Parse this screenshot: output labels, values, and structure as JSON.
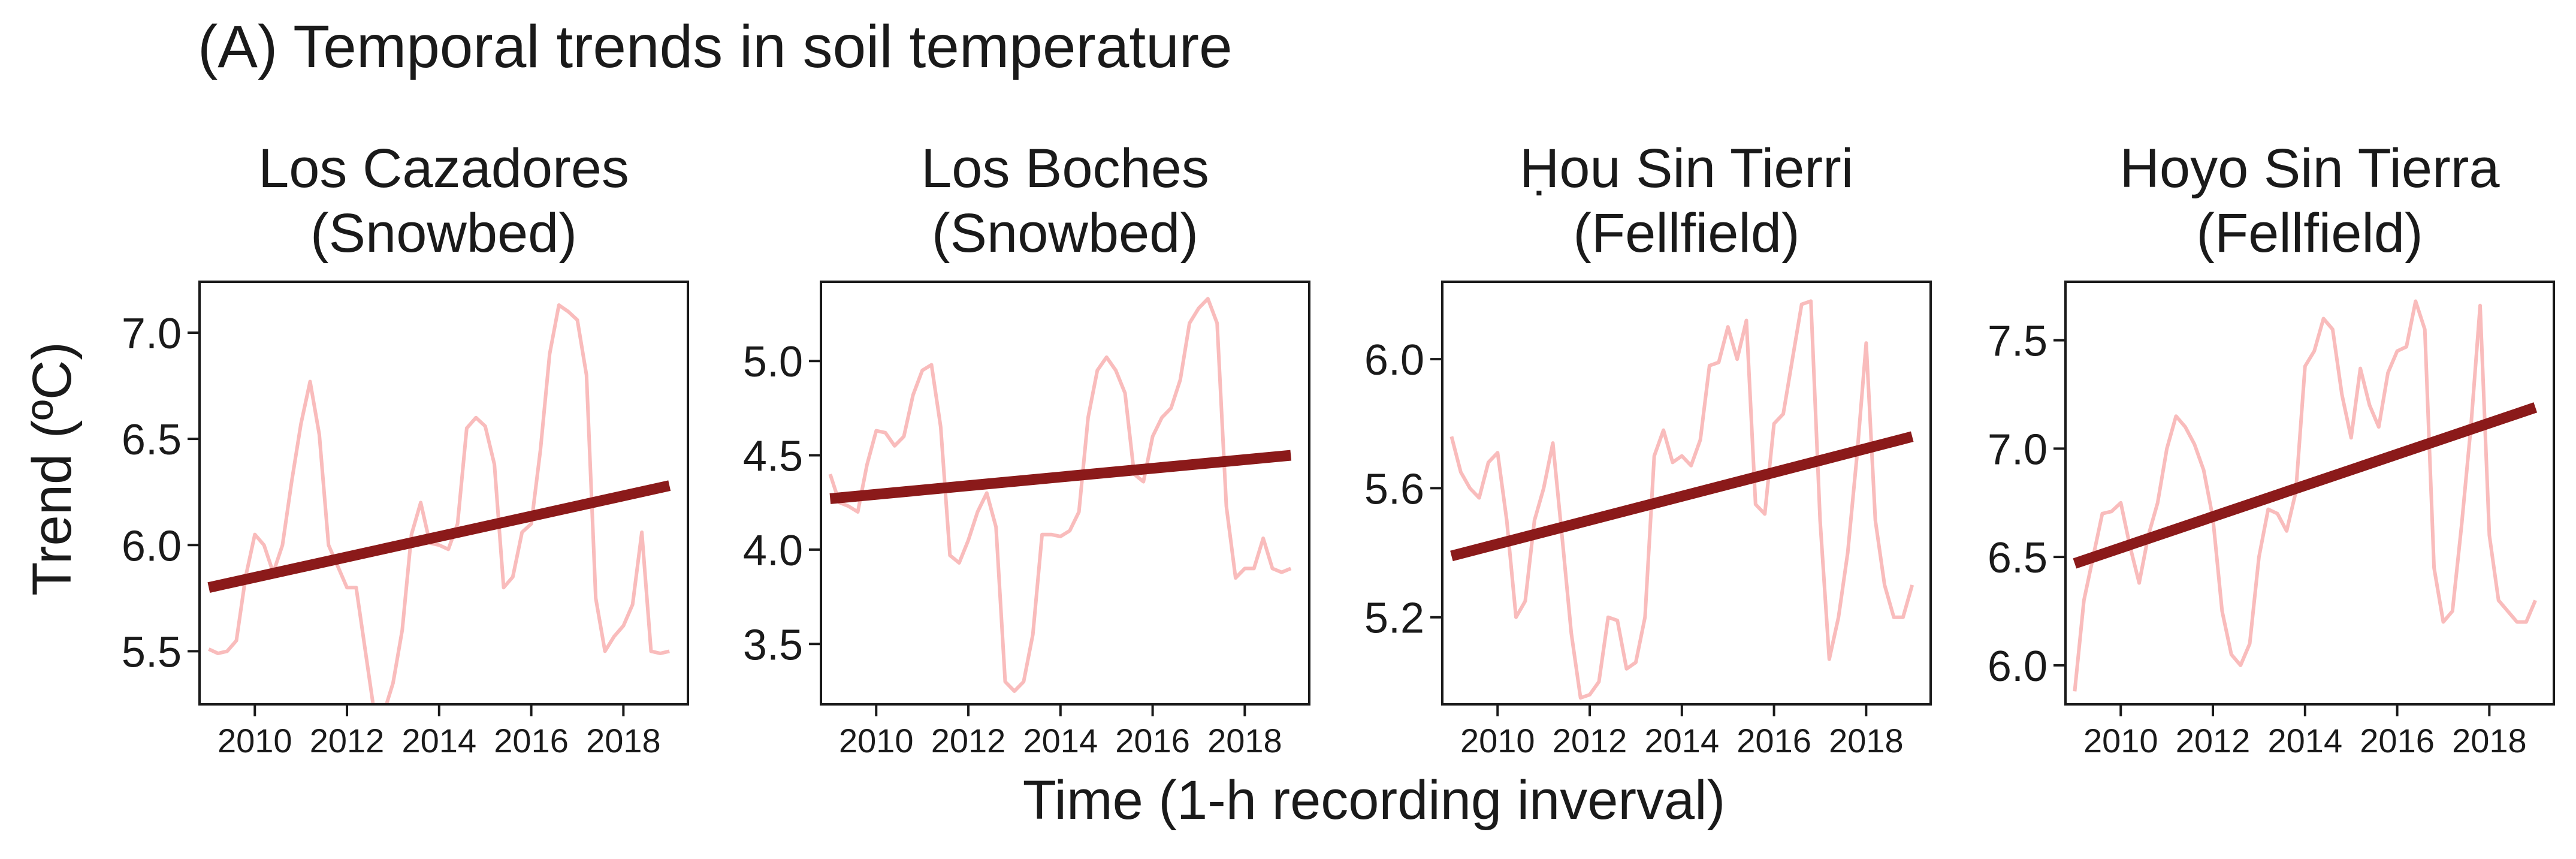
{
  "figure": {
    "title": "(A) Temporal trends in soil temperature",
    "ylabel": "Trend (ºC)",
    "xlabel": "Time (1-h recording inverval)"
  },
  "colors": {
    "raw_series": "#f9bcbc",
    "trend_line": "#8b1a1a",
    "frame": "#1a1a1a",
    "text": "#1a1a1a",
    "background": "#ffffff"
  },
  "chart_data": [
    {
      "type": "line",
      "title_line1": "Los Cazadores",
      "title_line2": "(Snowbed)",
      "xlim": [
        2008.8,
        2019.4
      ],
      "ylim": [
        5.25,
        7.24
      ],
      "x_ticks": [
        2010,
        2012,
        2014,
        2016,
        2018
      ],
      "y_ticks": [
        5.5,
        6.0,
        6.5,
        7.0
      ],
      "y_tick_labels": [
        "5.5",
        "6.0",
        "6.5",
        "7.0"
      ],
      "series": [
        {
          "x": [
            2009.0,
            2009.2,
            2009.4,
            2009.6,
            2009.8,
            2010.0,
            2010.2,
            2010.4,
            2010.6,
            2010.8,
            2011.0,
            2011.2,
            2011.4,
            2011.6,
            2011.8,
            2012.0,
            2012.2,
            2012.4,
            2012.6,
            2012.8,
            2013.0,
            2013.2,
            2013.4,
            2013.6,
            2013.8,
            2014.0,
            2014.2,
            2014.4,
            2014.6,
            2014.8,
            2015.0,
            2015.2,
            2015.4,
            2015.6,
            2015.8,
            2016.0,
            2016.2,
            2016.4,
            2016.6,
            2016.8,
            2017.0,
            2017.2,
            2017.4,
            2017.6,
            2017.8,
            2018.0,
            2018.2,
            2018.4,
            2018.6,
            2018.8,
            2019.0
          ],
          "values": [
            5.51,
            5.49,
            5.5,
            5.55,
            5.85,
            6.05,
            6.0,
            5.87,
            6.0,
            6.3,
            6.57,
            6.77,
            6.52,
            6.0,
            5.9,
            5.8,
            5.8,
            5.5,
            5.2,
            5.21,
            5.35,
            5.6,
            6.05,
            6.2,
            6.01,
            6.0,
            5.98,
            6.1,
            6.55,
            6.6,
            6.56,
            6.38,
            5.8,
            5.85,
            6.06,
            6.1,
            6.45,
            6.9,
            7.13,
            7.1,
            7.06,
            6.8,
            5.75,
            5.5,
            5.57,
            5.62,
            5.72,
            6.06,
            5.5,
            5.49,
            5.5
          ]
        },
        {
          "name": "",
          "x": [
            2009.0,
            2019.0
          ],
          "values": [
            5.8,
            6.28
          ]
        }
      ]
    },
    {
      "type": "line",
      "title_line1": "Los Boches",
      "title_line2": "(Snowbed)",
      "xlim": [
        2008.8,
        2019.4
      ],
      "ylim": [
        3.18,
        5.42
      ],
      "x_ticks": [
        2010,
        2012,
        2014,
        2016,
        2018
      ],
      "y_ticks": [
        3.5,
        4.0,
        4.5,
        5.0
      ],
      "y_tick_labels": [
        "3.5",
        "4.0",
        "4.5",
        "5.0"
      ],
      "series": [
        {
          "x": [
            2009.0,
            2009.2,
            2009.4,
            2009.6,
            2009.8,
            2010.0,
            2010.2,
            2010.4,
            2010.6,
            2010.8,
            2011.0,
            2011.2,
            2011.4,
            2011.6,
            2011.8,
            2012.0,
            2012.2,
            2012.4,
            2012.6,
            2012.8,
            2013.0,
            2013.2,
            2013.4,
            2013.6,
            2013.8,
            2014.0,
            2014.2,
            2014.4,
            2014.6,
            2014.8,
            2015.0,
            2015.2,
            2015.4,
            2015.6,
            2015.8,
            2016.0,
            2016.2,
            2016.4,
            2016.6,
            2016.8,
            2017.0,
            2017.2,
            2017.4,
            2017.6,
            2017.8,
            2018.0,
            2018.2,
            2018.4,
            2018.6,
            2018.8,
            2019.0
          ],
          "values": [
            4.4,
            4.25,
            4.23,
            4.2,
            4.45,
            4.63,
            4.62,
            4.55,
            4.6,
            4.82,
            4.95,
            4.98,
            4.65,
            3.97,
            3.93,
            4.05,
            4.2,
            4.3,
            4.12,
            3.3,
            3.25,
            3.3,
            3.55,
            4.08,
            4.08,
            4.07,
            4.1,
            4.2,
            4.7,
            4.95,
            5.02,
            4.95,
            4.83,
            4.4,
            4.36,
            4.6,
            4.7,
            4.75,
            4.9,
            5.2,
            5.28,
            5.33,
            5.2,
            4.23,
            3.85,
            3.9,
            3.9,
            4.06,
            3.9,
            3.88,
            3.9
          ]
        },
        {
          "name": "",
          "x": [
            2009.0,
            2019.0
          ],
          "values": [
            4.27,
            4.5
          ]
        }
      ]
    },
    {
      "type": "line",
      "title_line1": "Ḥou Sin Tierri",
      "title_line2": "(Fellfield)",
      "xlim": [
        2008.8,
        2019.4
      ],
      "ylim": [
        4.93,
        6.24
      ],
      "x_ticks": [
        2010,
        2012,
        2014,
        2016,
        2018
      ],
      "y_ticks": [
        5.2,
        5.6,
        6.0
      ],
      "y_tick_labels": [
        "5.2",
        "5.6",
        "6.0"
      ],
      "series": [
        {
          "x": [
            2009.0,
            2009.2,
            2009.4,
            2009.6,
            2009.8,
            2010.0,
            2010.2,
            2010.4,
            2010.6,
            2010.8,
            2011.0,
            2011.2,
            2011.4,
            2011.6,
            2011.8,
            2012.0,
            2012.2,
            2012.4,
            2012.6,
            2012.8,
            2013.0,
            2013.2,
            2013.4,
            2013.6,
            2013.8,
            2014.0,
            2014.2,
            2014.4,
            2014.6,
            2014.8,
            2015.0,
            2015.2,
            2015.4,
            2015.6,
            2015.8,
            2016.0,
            2016.2,
            2016.4,
            2016.6,
            2016.8,
            2017.0,
            2017.2,
            2017.4,
            2017.6,
            2017.8,
            2018.0,
            2018.2,
            2018.4,
            2018.6,
            2018.8,
            2019.0
          ],
          "values": [
            5.76,
            5.65,
            5.6,
            5.57,
            5.68,
            5.71,
            5.5,
            5.2,
            5.25,
            5.5,
            5.6,
            5.74,
            5.45,
            5.15,
            4.95,
            4.96,
            5.0,
            5.2,
            5.19,
            5.04,
            5.06,
            5.2,
            5.7,
            5.78,
            5.68,
            5.7,
            5.67,
            5.75,
            5.98,
            5.99,
            6.1,
            6.0,
            6.12,
            5.55,
            5.52,
            5.8,
            5.83,
            6.0,
            6.17,
            6.18,
            5.5,
            5.07,
            5.2,
            5.4,
            5.7,
            6.05,
            5.5,
            5.3,
            5.2,
            5.2,
            5.3
          ]
        },
        {
          "name": "",
          "x": [
            2009.0,
            2019.0
          ],
          "values": [
            5.39,
            5.76
          ]
        }
      ]
    },
    {
      "type": "line",
      "title_line1": "Hoyo Sin Tierra",
      "title_line2": "(Fellfield)",
      "xlim": [
        2008.8,
        2019.4
      ],
      "ylim": [
        5.82,
        7.77
      ],
      "x_ticks": [
        2010,
        2012,
        2014,
        2016,
        2018
      ],
      "y_ticks": [
        6.0,
        6.5,
        7.0,
        7.5
      ],
      "y_tick_labels": [
        "6.0",
        "6.5",
        "7.0",
        "7.5"
      ],
      "series": [
        {
          "x": [
            2009.0,
            2009.2,
            2009.4,
            2009.6,
            2009.8,
            2010.0,
            2010.2,
            2010.4,
            2010.6,
            2010.8,
            2011.0,
            2011.2,
            2011.4,
            2011.6,
            2011.8,
            2012.0,
            2012.2,
            2012.4,
            2012.6,
            2012.8,
            2013.0,
            2013.2,
            2013.4,
            2013.6,
            2013.8,
            2014.0,
            2014.2,
            2014.4,
            2014.6,
            2014.8,
            2015.0,
            2015.2,
            2015.4,
            2015.6,
            2015.8,
            2016.0,
            2016.2,
            2016.4,
            2016.6,
            2016.8,
            2017.0,
            2017.2,
            2017.4,
            2017.6,
            2017.8,
            2018.0,
            2018.2,
            2018.4,
            2018.6,
            2018.8,
            2019.0
          ],
          "values": [
            5.88,
            6.3,
            6.5,
            6.7,
            6.71,
            6.75,
            6.55,
            6.38,
            6.6,
            6.75,
            7.0,
            7.15,
            7.1,
            7.02,
            6.9,
            6.68,
            6.25,
            6.05,
            6.0,
            6.1,
            6.5,
            6.72,
            6.7,
            6.62,
            6.8,
            7.38,
            7.45,
            7.6,
            7.55,
            7.25,
            7.05,
            7.37,
            7.2,
            7.1,
            7.35,
            7.45,
            7.47,
            7.68,
            7.55,
            6.45,
            6.2,
            6.25,
            6.65,
            7.1,
            7.66,
            6.6,
            6.3,
            6.25,
            6.2,
            6.2,
            6.3
          ]
        },
        {
          "name": "",
          "x": [
            2009.0,
            2019.0
          ],
          "values": [
            6.47,
            7.19
          ]
        }
      ]
    }
  ]
}
